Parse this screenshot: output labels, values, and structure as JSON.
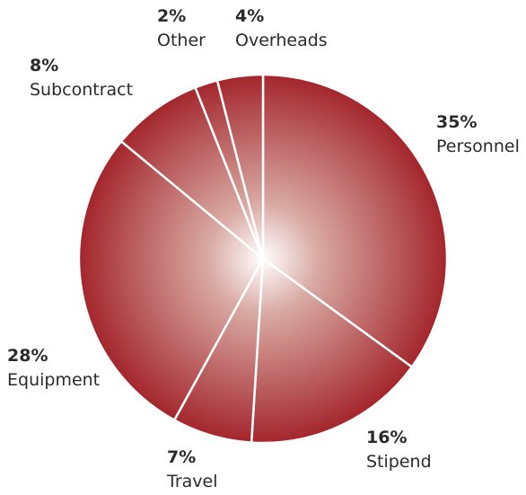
{
  "chart_data": {
    "type": "pie",
    "title": "",
    "slices": [
      {
        "label": "Personnel",
        "value": 35,
        "value_label": "35%"
      },
      {
        "label": "Stipend",
        "value": 16,
        "value_label": "16%"
      },
      {
        "label": "Travel",
        "value": 7,
        "value_label": "7%"
      },
      {
        "label": "Equipment",
        "value": 28,
        "value_label": "28%"
      },
      {
        "label": "Subcontract",
        "value": 8,
        "value_label": "8%"
      },
      {
        "label": "Other",
        "value": 2,
        "value_label": "2%"
      },
      {
        "label": "Overheads",
        "value": 4,
        "value_label": "4%"
      }
    ],
    "start": "top",
    "direction": "clockwise",
    "colors": {
      "slice_fill_edge": "#a3262c",
      "slice_fill_center": "#ffffff",
      "separator": "#ffffff",
      "label_text": "#2b2b2b"
    },
    "legend": "none"
  }
}
